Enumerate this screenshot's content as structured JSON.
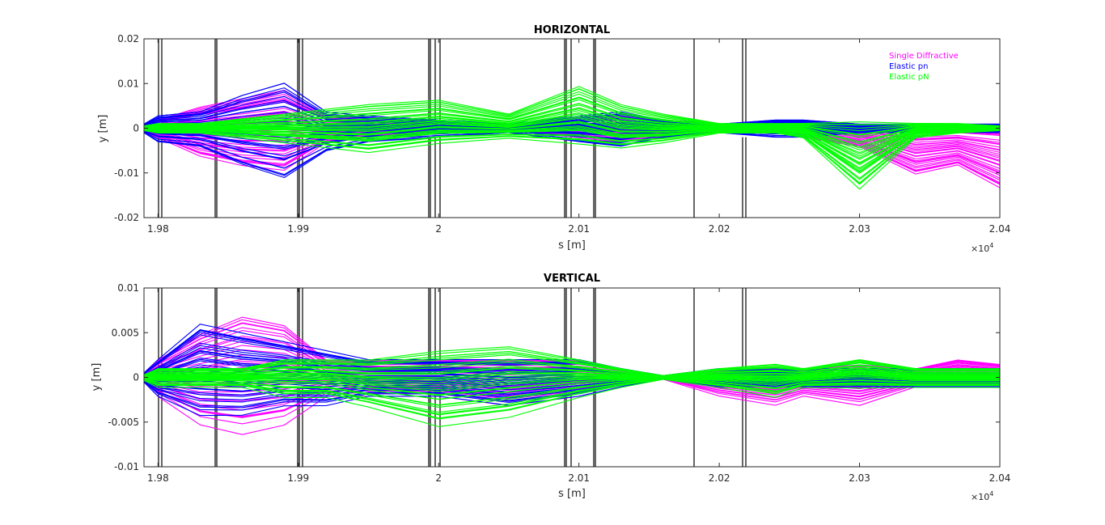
{
  "chart_data": [
    {
      "type": "line",
      "title": "HORIZONTAL",
      "xlabel": "s [m]",
      "ylabel": "y [m]",
      "xlim": [
        19790,
        20400
      ],
      "ylim": [
        -0.02,
        0.02
      ],
      "x_ticks": [
        19800,
        19900,
        20000,
        20100,
        20200,
        20300,
        20400
      ],
      "x_tick_labels": [
        "1.98",
        "1.99",
        "2",
        "2.01",
        "2.02",
        "2.03",
        "2.04"
      ],
      "x_exponent": "×10",
      "x_exponent_power": "4",
      "y_ticks": [
        -0.02,
        -0.01,
        0,
        0.01,
        0.02
      ],
      "y_tick_labels": [
        "-0.02",
        "-0.01",
        "0",
        "0.01",
        "0.02"
      ],
      "grid": false,
      "legend_position": "top-right",
      "legend": [
        {
          "label": "Single Diffractive",
          "color": "#ff00ff"
        },
        {
          "label": "Elastic pn",
          "color": "#0000ff"
        },
        {
          "label": "Elastic pN",
          "color": "#00ff00"
        }
      ],
      "series": [
        {
          "name": "Single Diffractive",
          "color": "#ff00ff",
          "x": [
            19790,
            19800,
            19830,
            19860,
            19890,
            19920,
            19950,
            20000,
            20050,
            20100,
            20130,
            20160,
            20200,
            20240,
            20260,
            20300,
            20340,
            20370,
            20400
          ],
          "envelope_upper": [
            0.001,
            0.002,
            0.005,
            0.007,
            0.009,
            0.003,
            0.002,
            0.001,
            0.0005,
            0.002,
            0.003,
            0.002,
            0.001,
            0.001,
            0.0015,
            0.001,
            0.0008,
            0.0005,
            0.0008
          ],
          "envelope_lower": [
            -0.001,
            -0.002,
            -0.006,
            -0.008,
            -0.009,
            -0.003,
            -0.002,
            -0.001,
            -0.0005,
            -0.002,
            -0.003,
            -0.002,
            -0.001,
            -0.001,
            -0.002,
            -0.004,
            -0.01,
            -0.008,
            -0.013
          ]
        },
        {
          "name": "Elastic pn",
          "color": "#0000ff",
          "x": [
            19790,
            19800,
            19830,
            19860,
            19890,
            19920,
            19950,
            20000,
            20050,
            20100,
            20130,
            20160,
            20200,
            20240,
            20260,
            20300,
            20340,
            20370,
            20400
          ],
          "envelope_upper": [
            0.001,
            0.003,
            0.004,
            0.008,
            0.011,
            0.004,
            0.003,
            0.002,
            0.001,
            0.003,
            0.004,
            0.002,
            0.001,
            0.002,
            0.002,
            0.001,
            0.001,
            0.001,
            0.001
          ],
          "envelope_lower": [
            -0.001,
            -0.003,
            -0.004,
            -0.008,
            -0.011,
            -0.005,
            -0.003,
            -0.002,
            -0.001,
            -0.003,
            -0.004,
            -0.002,
            -0.001,
            -0.002,
            -0.002,
            -0.001,
            -0.001,
            -0.001,
            -0.001
          ]
        },
        {
          "name": "Elastic pN",
          "color": "#00ff00",
          "x": [
            19790,
            19800,
            19830,
            19860,
            19890,
            19920,
            19950,
            20000,
            20050,
            20100,
            20130,
            20160,
            20200,
            20240,
            20260,
            20300,
            20340,
            20370,
            20400
          ],
          "envelope_upper": [
            0.0005,
            0.001,
            0.001,
            0.002,
            0.003,
            0.004,
            0.005,
            0.006,
            0.003,
            0.009,
            0.005,
            0.003,
            0.001,
            0.001,
            0.001,
            0.001,
            0.001,
            0.001,
            0.0005
          ],
          "envelope_lower": [
            -0.0005,
            -0.001,
            -0.001,
            -0.002,
            -0.003,
            -0.004,
            -0.005,
            -0.003,
            -0.002,
            -0.003,
            -0.004,
            -0.003,
            -0.001,
            -0.001,
            -0.002,
            -0.013,
            -0.002,
            -0.001,
            -0.0005
          ]
        }
      ]
    },
    {
      "type": "line",
      "title": "VERTICAL",
      "xlabel": "s [m]",
      "ylabel": "y [m]",
      "xlim": [
        19790,
        20400
      ],
      "ylim": [
        -0.01,
        0.01
      ],
      "x_ticks": [
        19800,
        19900,
        20000,
        20100,
        20200,
        20300,
        20400
      ],
      "x_tick_labels": [
        "1.98",
        "1.99",
        "2",
        "2.01",
        "2.02",
        "2.03",
        "2.04"
      ],
      "x_exponent": "×10",
      "x_exponent_power": "4",
      "y_ticks": [
        -0.01,
        -0.005,
        0,
        0.005,
        0.01
      ],
      "y_tick_labels": [
        "-0.01",
        "-0.005",
        "0",
        "0.005",
        "0.01"
      ],
      "grid": false,
      "series": [
        {
          "name": "Single Diffractive",
          "color": "#ff00ff",
          "x": [
            19790,
            19800,
            19830,
            19860,
            19890,
            19920,
            19950,
            20000,
            20050,
            20100,
            20130,
            20160,
            20200,
            20240,
            20260,
            20300,
            20340,
            20370,
            20400
          ],
          "envelope_upper": [
            0.0005,
            0.002,
            0.005,
            0.007,
            0.006,
            0.002,
            0.002,
            0.002,
            0.002,
            0.002,
            0.001,
            0.0002,
            0.001,
            0.001,
            0.001,
            0.0015,
            0.001,
            0.002,
            0.0015
          ],
          "envelope_lower": [
            -0.0005,
            -0.002,
            -0.005,
            -0.006,
            -0.005,
            -0.002,
            -0.002,
            -0.002,
            -0.003,
            -0.002,
            -0.001,
            -0.0002,
            -0.002,
            -0.003,
            -0.002,
            -0.003,
            -0.001,
            -0.001,
            -0.001
          ]
        },
        {
          "name": "Elastic pn",
          "color": "#0000ff",
          "x": [
            19790,
            19800,
            19830,
            19860,
            19890,
            19920,
            19950,
            20000,
            20050,
            20100,
            20130,
            20160,
            20200,
            20240,
            20260,
            20300,
            20340,
            20370,
            20400
          ],
          "envelope_upper": [
            0.0005,
            0.002,
            0.006,
            0.005,
            0.004,
            0.003,
            0.002,
            0.002,
            0.002,
            0.002,
            0.001,
            0.0002,
            0.001,
            0.001,
            0.001,
            0.001,
            0.001,
            0.001,
            0.001
          ],
          "envelope_lower": [
            -0.0005,
            -0.002,
            -0.004,
            -0.004,
            -0.003,
            -0.003,
            -0.002,
            -0.002,
            -0.003,
            -0.002,
            -0.001,
            -0.0002,
            -0.001,
            -0.001,
            -0.001,
            -0.001,
            -0.001,
            -0.001,
            -0.001
          ]
        },
        {
          "name": "Elastic pN",
          "color": "#00ff00",
          "x": [
            19790,
            19800,
            19830,
            19860,
            19890,
            19920,
            19950,
            20000,
            20050,
            20100,
            20130,
            20160,
            20200,
            20240,
            20260,
            20300,
            20340,
            20370,
            20400
          ],
          "envelope_upper": [
            0.0003,
            0.001,
            0.001,
            0.001,
            0.002,
            0.002,
            0.002,
            0.003,
            0.0035,
            0.002,
            0.001,
            0.0002,
            0.001,
            0.0015,
            0.001,
            0.002,
            0.001,
            0.001,
            0.001
          ],
          "envelope_lower": [
            -0.0003,
            -0.001,
            -0.001,
            -0.001,
            -0.002,
            -0.002,
            -0.003,
            -0.005,
            -0.004,
            -0.002,
            -0.001,
            -0.0002,
            -0.001,
            -0.002,
            -0.001,
            -0.001,
            -0.001,
            -0.001,
            -0.001
          ]
        }
      ]
    }
  ]
}
